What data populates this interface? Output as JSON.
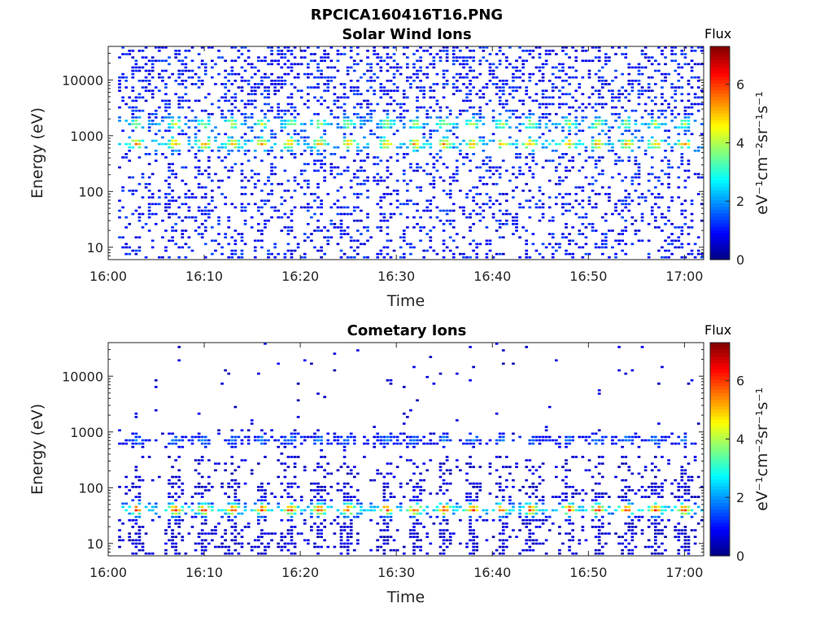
{
  "figure_title": "RPCICA160416T16.PNG",
  "chart_data": [
    {
      "type": "heatmap",
      "title": "Solar Wind Ions",
      "xlabel": "Time",
      "ylabel": "Energy (eV)",
      "x_ticks": [
        "16:00",
        "16:10",
        "16:20",
        "16:30",
        "16:40",
        "16:50",
        "17:00"
      ],
      "x_range": [
        "16:00",
        "17:02"
      ],
      "y_ticks": [
        "10",
        "100",
        "1000",
        "10000"
      ],
      "y_scale": "log",
      "y_range": [
        6,
        40000
      ],
      "colorbar_title": "Flux",
      "colorbar_label": "eV⁻¹cm⁻²sr⁻¹s⁻¹",
      "colorbar_ticks": [
        "0",
        "2",
        "4",
        "6"
      ],
      "colorbar_range": [
        0,
        7.3
      ],
      "colormap": "jet",
      "bands": [
        {
          "description": "energy bands",
          "energy_ev": 700,
          "peak_flux": 4.2
        },
        {
          "energy_ev": 1600,
          "peak_flux": 3.0
        }
      ],
      "burst_times": [
        "16:03",
        "16:07",
        "16:10",
        "16:13",
        "16:16",
        "16:19",
        "16:22",
        "16:25",
        "16:29",
        "16:32",
        "16:35",
        "16:38",
        "16:41",
        "16:44",
        "16:48",
        "16:51",
        "16:54",
        "16:57",
        "17:00"
      ],
      "background_flux": 1.0
    },
    {
      "type": "heatmap",
      "title": "Cometary Ions",
      "xlabel": "Time",
      "ylabel": "Energy (eV)",
      "x_ticks": [
        "16:00",
        "16:10",
        "16:20",
        "16:30",
        "16:40",
        "16:50",
        "17:00"
      ],
      "x_range": [
        "16:00",
        "17:02"
      ],
      "y_ticks": [
        "10",
        "100",
        "1000",
        "10000"
      ],
      "y_scale": "log",
      "y_range": [
        6,
        40000
      ],
      "colorbar_title": "Flux",
      "colorbar_label": "eV⁻¹cm⁻²sr⁻¹s⁻¹",
      "colorbar_ticks": [
        "0",
        "2",
        "4",
        "6"
      ],
      "colorbar_range": [
        0,
        7.3
      ],
      "colormap": "jet",
      "bands": [
        {
          "energy_ev": 40,
          "peak_flux": 5.5
        },
        {
          "energy_ev": 700,
          "peak_flux": 1.2
        }
      ],
      "burst_times": [
        "16:03",
        "16:07",
        "16:10",
        "16:13",
        "16:16",
        "16:19",
        "16:22",
        "16:25",
        "16:29",
        "16:32",
        "16:35",
        "16:38",
        "16:41",
        "16:44",
        "16:48",
        "16:51",
        "16:54",
        "16:57",
        "17:00"
      ],
      "background_flux": 0.6
    }
  ]
}
